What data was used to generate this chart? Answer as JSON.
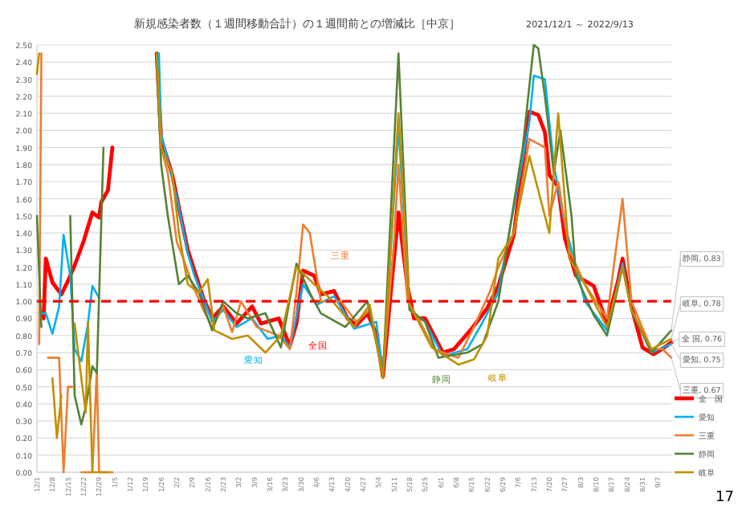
{
  "chart_data": {
    "type": "line",
    "title": "新規感染者数（１週間移動合計）の１週間前との増減比［中京］",
    "subtitle": "2021/12/1 ～ 2022/9/13",
    "xlim": [
      "2021-12-01",
      "2022-09-13"
    ],
    "ylim": [
      0,
      2.5
    ],
    "yticks": [
      {
        "value": 0,
        "label": "0.00"
      },
      {
        "value": 0.1,
        "label": "0.10"
      },
      {
        "value": 0.2,
        "label": "0.20"
      },
      {
        "value": 0.3,
        "label": "0.30"
      },
      {
        "value": 0.4,
        "label": "0.40"
      },
      {
        "value": 0.5,
        "label": "0.50"
      },
      {
        "value": 0.6,
        "label": "0.60"
      },
      {
        "value": 0.7,
        "label": "0.70"
      },
      {
        "value": 0.8,
        "label": "0.80"
      },
      {
        "value": 0.9,
        "label": "0.90"
      },
      {
        "value": 1,
        "label": "1.00"
      },
      {
        "value": 1.1,
        "label": "1.10"
      },
      {
        "value": 1.2,
        "label": "1.20"
      },
      {
        "value": 1.3,
        "label": "1.30"
      },
      {
        "value": 1.4,
        "label": "1.40"
      },
      {
        "value": 1.5,
        "label": "1.50"
      },
      {
        "value": 1.6,
        "label": "1.60"
      },
      {
        "value": 1.7,
        "label": "1.70"
      },
      {
        "value": 1.8,
        "label": "1.80"
      },
      {
        "value": 1.9,
        "label": "1.90"
      },
      {
        "value": 2,
        "label": "2.00"
      },
      {
        "value": 2.1,
        "label": "2.10"
      },
      {
        "value": 2.2,
        "label": "2.20"
      },
      {
        "value": 2.3,
        "label": "2.30"
      },
      {
        "value": 2.4,
        "label": "2.40"
      },
      {
        "value": 2.5,
        "label": "2.50"
      }
    ],
    "xticks": [
      {
        "value": "2021-12-01",
        "label": "12/1"
      },
      {
        "value": "2021-12-08",
        "label": "12/8"
      },
      {
        "value": "2021-12-15",
        "label": "12/15"
      },
      {
        "value": "2021-12-22",
        "label": "12/22"
      },
      {
        "value": "2021-12-29",
        "label": "12/29"
      },
      {
        "value": "2022-01-05",
        "label": "1/5"
      },
      {
        "value": "2022-01-12",
        "label": "1/12"
      },
      {
        "value": "2022-01-19",
        "label": "1/19"
      },
      {
        "value": "2022-01-26",
        "label": "1/26"
      },
      {
        "value": "2022-02-02",
        "label": "2/2"
      },
      {
        "value": "2022-02-09",
        "label": "2/9"
      },
      {
        "value": "2022-02-16",
        "label": "2/16"
      },
      {
        "value": "2022-02-23",
        "label": "2/23"
      },
      {
        "value": "2022-03-02",
        "label": "3/2"
      },
      {
        "value": "2022-03-09",
        "label": "3/9"
      },
      {
        "value": "2022-03-16",
        "label": "3/16"
      },
      {
        "value": "2022-03-23",
        "label": "3/23"
      },
      {
        "value": "2022-03-30",
        "label": "3/30"
      },
      {
        "value": "2022-04-06",
        "label": "4/6"
      },
      {
        "value": "2022-04-13",
        "label": "4/13"
      },
      {
        "value": "2022-04-20",
        "label": "4/20"
      },
      {
        "value": "2022-04-27",
        "label": "4/27"
      },
      {
        "value": "2022-05-04",
        "label": "5/4"
      },
      {
        "value": "2022-05-11",
        "label": "5/11"
      },
      {
        "value": "2022-05-18",
        "label": "5/18"
      },
      {
        "value": "2022-05-25",
        "label": "5/25"
      },
      {
        "value": "2022-06-01",
        "label": "6/1"
      },
      {
        "value": "2022-06-08",
        "label": "6/8"
      },
      {
        "value": "2022-06-15",
        "label": "6/15"
      },
      {
        "value": "2022-06-22",
        "label": "6/22"
      },
      {
        "value": "2022-06-29",
        "label": "6/29"
      },
      {
        "value": "2022-07-06",
        "label": "7/6"
      },
      {
        "value": "2022-07-13",
        "label": "7/13"
      },
      {
        "value": "2022-07-20",
        "label": "7/20"
      },
      {
        "value": "2022-07-27",
        "label": "7/27"
      },
      {
        "value": "2022-08-03",
        "label": "8/3"
      },
      {
        "value": "2022-08-10",
        "label": "8/10"
      },
      {
        "value": "2022-08-17",
        "label": "8/17"
      },
      {
        "value": "2022-08-24",
        "label": "8/24"
      },
      {
        "value": "2022-08-31",
        "label": "8/31"
      },
      {
        "value": "2022-09-07",
        "label": "9/7"
      }
    ],
    "grid": "y",
    "legend": "bottom right",
    "line_style": "solid",
    "marker": "none",
    "ref_lines": [
      {
        "axis": "y",
        "value": 1,
        "color": "#ff0000",
        "line_style": "dashed"
      }
    ],
    "series": [
      {
        "name": "全　国",
        "color": "#ff0000",
        "x": [
          "2021-12-04",
          "2021-12-05",
          "2021-12-08",
          "2021-12-12",
          "2021-12-15",
          "2021-12-18",
          "2021-12-22",
          "2021-12-26",
          "2021-12-29",
          "2021-12-30",
          "2022-01-02",
          "2022-01-04",
          "2022-01-05",
          "2022-01-24",
          "2022-01-26",
          "2022-01-31",
          "2022-02-03",
          "2022-02-07",
          "2022-02-10",
          "2022-02-14",
          "2022-02-18",
          "2022-02-23",
          "2022-03-01",
          "2022-03-08",
          "2022-03-10",
          "2022-03-12",
          "2022-03-20",
          "2022-03-25",
          "2022-03-28",
          "2022-03-31",
          "2022-04-05",
          "2022-04-08",
          "2022-04-14",
          "2022-04-20",
          "2022-04-24",
          "2022-04-29",
          "2022-05-03",
          "2022-05-06",
          "2022-05-10",
          "2022-05-13",
          "2022-05-17",
          "2022-05-20",
          "2022-05-25",
          "2022-06-02",
          "2022-06-07",
          "2022-06-15",
          "2022-06-22",
          "2022-06-27",
          "2022-07-04",
          "2022-07-11",
          "2022-07-15",
          "2022-07-18",
          "2022-07-20",
          "2022-07-24",
          "2022-07-27",
          "2022-08-01",
          "2022-08-09",
          "2022-08-15",
          "2022-08-20",
          "2022-08-22",
          "2022-08-26",
          "2022-08-31",
          "2022-09-05",
          "2022-09-11",
          "2022-09-13"
        ],
        "values": [
          0.9,
          1.25,
          1.11,
          1.04,
          1.12,
          1.21,
          1.35,
          1.52,
          1.49,
          1.58,
          1.65,
          1.9,
          null,
          2.45,
          1.95,
          1.74,
          1.55,
          1.3,
          1.18,
          1.02,
          0.9,
          0.97,
          0.87,
          0.97,
          0.92,
          0.87,
          0.9,
          0.74,
          0.87,
          1.18,
          1.15,
          1.04,
          1.06,
          0.9,
          0.86,
          0.93,
          0.81,
          0.56,
          1.12,
          1.52,
          1.09,
          0.9,
          0.9,
          0.7,
          0.72,
          0.84,
          0.96,
          1.09,
          1.39,
          2.11,
          2.09,
          1.99,
          1.74,
          1.67,
          1.37,
          1.15,
          1.09,
          0.87,
          1.12,
          1.25,
          0.97,
          0.73,
          0.69,
          0.74,
          0.76
        ]
      },
      {
        "name": "愛知",
        "color": "#00b0f0",
        "x": [
          "2021-12-02",
          "2021-12-05",
          "2021-12-08",
          "2021-12-11",
          "2021-12-13",
          "2021-12-16",
          "2021-12-18",
          "2021-12-21",
          "2021-12-24",
          "2021-12-26",
          "2021-12-29",
          "2021-12-31",
          "2022-01-25",
          "2022-01-26",
          "2022-01-31",
          "2022-02-03",
          "2022-02-07",
          "2022-02-10",
          "2022-02-14",
          "2022-02-18",
          "2022-02-23",
          "2022-03-01",
          "2022-03-08",
          "2022-03-15",
          "2022-03-21",
          "2022-03-25",
          "2022-03-31",
          "2022-04-06",
          "2022-04-14",
          "2022-04-23",
          "2022-05-03",
          "2022-05-06",
          "2022-05-13",
          "2022-05-18",
          "2022-05-25",
          "2022-06-02",
          "2022-06-13",
          "2022-06-20",
          "2022-06-27",
          "2022-07-11",
          "2022-07-13",
          "2022-07-18",
          "2022-07-22",
          "2022-07-27",
          "2022-08-05",
          "2022-08-15",
          "2022-08-22",
          "2022-08-26",
          "2022-09-04",
          "2022-09-13"
        ],
        "values": [
          0.93,
          0.93,
          0.81,
          0.97,
          1.39,
          1.15,
          0.72,
          0.65,
          0.87,
          1.09,
          1.02,
          null,
          2.45,
          1.98,
          1.72,
          1.55,
          1.28,
          1.15,
          1.02,
          0.88,
          0.95,
          0.85,
          0.9,
          0.78,
          0.8,
          0.73,
          1.1,
          0.98,
          1.03,
          0.84,
          0.88,
          0.58,
          2.02,
          0.95,
          0.88,
          0.68,
          0.72,
          0.88,
          1.05,
          2.05,
          2.32,
          2.3,
          1.8,
          1.45,
          1.0,
          0.83,
          1.22,
          0.95,
          0.7,
          0.75
        ]
      },
      {
        "name": "三重",
        "color": "#ed7d31",
        "x": [
          "2021-12-02",
          "2021-12-03",
          "2021-12-04",
          "2021-12-06",
          "2021-12-11",
          "2021-12-13",
          "2021-12-15",
          "2021-12-17",
          "2021-12-18",
          "2021-12-21",
          "2021-12-26",
          "2021-12-28",
          "2021-12-29",
          "2022-01-04",
          "2022-01-05",
          "2022-01-24",
          "2022-01-26",
          "2022-01-29",
          "2022-02-02",
          "2022-02-05",
          "2022-02-09",
          "2022-02-14",
          "2022-02-18",
          "2022-02-23",
          "2022-02-27",
          "2022-03-03",
          "2022-03-10",
          "2022-03-20",
          "2022-03-25",
          "2022-03-28",
          "2022-03-31",
          "2022-04-03",
          "2022-04-08",
          "2022-04-17",
          "2022-04-24",
          "2022-04-30",
          "2022-05-06",
          "2022-05-11",
          "2022-05-13",
          "2022-05-17",
          "2022-05-22",
          "2022-05-29",
          "2022-06-09",
          "2022-06-16",
          "2022-06-23",
          "2022-06-27",
          "2022-07-04",
          "2022-07-11",
          "2022-07-18",
          "2022-07-20",
          "2022-07-24",
          "2022-07-29",
          "2022-08-05",
          "2022-08-15",
          "2022-08-22",
          "2022-08-26",
          "2022-09-04",
          "2022-09-09",
          "2022-09-13"
        ],
        "values": [
          0.75,
          2.45,
          null,
          0.67,
          0.67,
          0.0,
          0.5,
          0.5,
          null,
          0.0,
          0.0,
          0.6,
          0.0,
          0.0,
          null,
          2.4,
          1.9,
          1.75,
          1.35,
          1.25,
          1.1,
          0.95,
          0.85,
          0.97,
          0.82,
          1.0,
          0.85,
          0.8,
          0.72,
          1.05,
          1.45,
          1.4,
          1.0,
          1.0,
          0.88,
          0.95,
          0.58,
          1.35,
          1.8,
          1.0,
          0.9,
          0.72,
          0.67,
          0.85,
          1.05,
          1.2,
          1.4,
          1.95,
          1.9,
          1.5,
          1.7,
          1.3,
          1.1,
          0.9,
          1.6,
          1.0,
          0.72,
          0.72,
          0.67
        ]
      },
      {
        "name": "静岡",
        "color": "#548235",
        "x": [
          "2021-12-01",
          "2021-12-03",
          "2021-12-05",
          "2021-12-16",
          "2021-12-18",
          "2021-12-21",
          "2021-12-23",
          "2021-12-26",
          "2021-12-28",
          "2021-12-31",
          "2022-01-03",
          "2022-01-24",
          "2022-01-26",
          "2022-01-29",
          "2022-02-03",
          "2022-02-07",
          "2022-02-12",
          "2022-02-18",
          "2022-02-23",
          "2022-03-01",
          "2022-03-06",
          "2022-03-14",
          "2022-03-21",
          "2022-03-28",
          "2022-04-03",
          "2022-04-08",
          "2022-04-19",
          "2022-04-29",
          "2022-05-06",
          "2022-05-13",
          "2022-05-18",
          "2022-05-25",
          "2022-05-31",
          "2022-06-13",
          "2022-06-20",
          "2022-06-27",
          "2022-07-08",
          "2022-07-13",
          "2022-07-15",
          "2022-07-18",
          "2022-07-22",
          "2022-07-25",
          "2022-07-30",
          "2022-08-01",
          "2022-08-09",
          "2022-08-15",
          "2022-08-22",
          "2022-08-26",
          "2022-09-04",
          "2022-09-13"
        ],
        "values": [
          1.5,
          0.85,
          null,
          1.5,
          0.45,
          0.28,
          0.38,
          0.62,
          0.58,
          1.9,
          null,
          2.4,
          1.8,
          1.5,
          1.1,
          1.15,
          1.05,
          0.83,
          1.0,
          0.93,
          0.9,
          0.93,
          0.73,
          1.22,
          1.05,
          0.93,
          0.85,
          1.0,
          0.57,
          2.45,
          0.95,
          0.88,
          0.67,
          0.7,
          0.75,
          1.0,
          1.9,
          2.5,
          2.48,
          2.2,
          1.75,
          2.0,
          1.5,
          1.15,
          0.92,
          0.8,
          1.2,
          0.95,
          0.7,
          0.83
        ]
      },
      {
        "name": "岐阜",
        "color": "#bf9000",
        "x": [
          "2021-12-01",
          "2021-12-02",
          "2021-12-03",
          "2021-12-08",
          "2021-12-10",
          "2021-12-12",
          "2021-12-15",
          "2021-12-18",
          "2021-12-21",
          "2021-12-23",
          "2021-12-24",
          "2021-12-26",
          "2021-12-29",
          "2022-01-02",
          "2022-01-03",
          "2022-01-24",
          "2022-01-26",
          "2022-01-31",
          "2022-02-03",
          "2022-02-07",
          "2022-02-12",
          "2022-02-16",
          "2022-02-19",
          "2022-02-27",
          "2022-03-06",
          "2022-03-14",
          "2022-03-21",
          "2022-03-28",
          "2022-04-05",
          "2022-04-12",
          "2022-04-23",
          "2022-04-30",
          "2022-05-06",
          "2022-05-13",
          "2022-05-18",
          "2022-05-28",
          "2022-06-09",
          "2022-06-16",
          "2022-06-22",
          "2022-06-27",
          "2022-07-04",
          "2022-07-11",
          "2022-07-20",
          "2022-07-24",
          "2022-07-29",
          "2022-08-05",
          "2022-08-15",
          "2022-08-22",
          "2022-08-26",
          "2022-09-04",
          "2022-09-13"
        ],
        "values": [
          2.33,
          2.45,
          null,
          0.55,
          0.2,
          0.45,
          null,
          0.87,
          0.55,
          0.35,
          0.88,
          0.0,
          0.0,
          0.0,
          null,
          2.45,
          1.9,
          1.75,
          1.4,
          1.1,
          1.05,
          1.13,
          0.83,
          0.78,
          0.8,
          0.7,
          0.8,
          1.2,
          1.1,
          1.02,
          0.85,
          0.98,
          0.55,
          2.1,
          0.98,
          0.73,
          0.63,
          0.66,
          0.8,
          1.25,
          1.4,
          1.85,
          1.4,
          2.1,
          1.25,
          1.1,
          0.85,
          1.2,
          0.95,
          0.72,
          0.78
        ]
      }
    ],
    "annotations": [
      "全国",
      "愛知",
      "三重",
      "静岡",
      "岐阜",
      {
        "text": "静岡, 0.83",
        "x": "2022-09-13",
        "y": 0.83
      },
      {
        "text": "岐阜, 0.78",
        "x": "2022-09-13",
        "y": 0.78
      },
      {
        "text": "全 国, 0.76",
        "x": "2022-09-13",
        "y": 0.76
      },
      {
        "text": "愛知, 0.75",
        "x": "2022-09-13",
        "y": 0.75
      },
      {
        "text": "三重, 0.67",
        "x": "2022-09-13",
        "y": 0.67
      },
      "17"
    ]
  }
}
